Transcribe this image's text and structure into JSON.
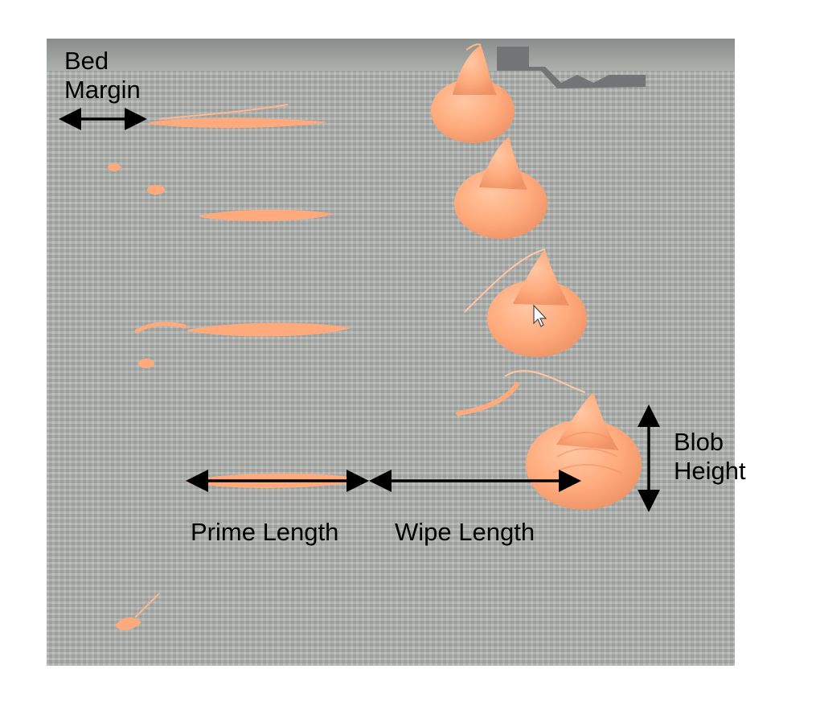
{
  "labels": {
    "bed_margin": "Bed Margin",
    "blob_height": "Blob Height",
    "prime_length": "Prime Length",
    "wipe_length": "Wipe Length"
  },
  "colors": {
    "filament": "#ff8a4a",
    "arrow": "#000000",
    "bed": "#8f958e"
  }
}
